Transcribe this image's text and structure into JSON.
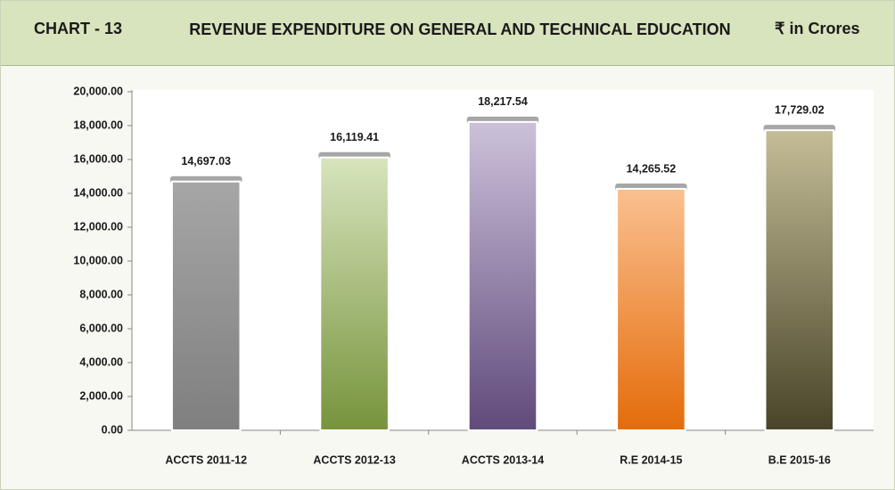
{
  "chart_data": {
    "type": "bar",
    "chart_number": "CHART - 13",
    "title": "REVENUE EXPENDITURE ON GENERAL AND TECHNICAL EDUCATION",
    "unit": "₹ in Crores",
    "categories": [
      "ACCTS 2011-12",
      "ACCTS 2012-13",
      "ACCTS 2013-14",
      "R.E  2014-15",
      "B.E 2015-16"
    ],
    "values": [
      14697.03,
      16119.41,
      18217.54,
      14265.52,
      17729.02
    ],
    "value_labels": [
      "14,697.03",
      "16,119.41",
      "18,217.54",
      "14,265.52",
      "17,729.02"
    ],
    "colors": [
      [
        "#a6a6a6",
        "#7f7f7f"
      ],
      [
        "#d7e4bd",
        "#77933c"
      ],
      [
        "#ccc1da",
        "#604a7b"
      ],
      [
        "#fac090",
        "#e46c0a"
      ],
      [
        "#c4bd97",
        "#494429"
      ]
    ],
    "ylim": [
      0,
      20000
    ],
    "yticks": [
      {
        "value": 0,
        "label": "0.00"
      },
      {
        "value": 2000,
        "label": "2,000.00"
      },
      {
        "value": 4000,
        "label": "4,000.00"
      },
      {
        "value": 6000,
        "label": "6,000.00"
      },
      {
        "value": 8000,
        "label": "8,000.00"
      },
      {
        "value": 10000,
        "label": "10,000.00"
      },
      {
        "value": 12000,
        "label": "12,000.00"
      },
      {
        "value": 14000,
        "label": "14,000.00"
      },
      {
        "value": 16000,
        "label": "16,000.00"
      },
      {
        "value": 18000,
        "label": "18,000.00"
      },
      {
        "value": 20000,
        "label": "20,000.00"
      }
    ],
    "grid": false
  }
}
